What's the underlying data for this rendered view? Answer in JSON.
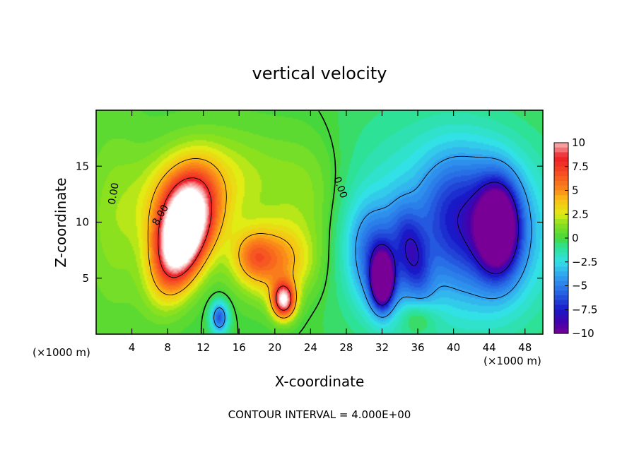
{
  "chart_data": {
    "type": "heatmap",
    "title": "vertical velocity",
    "xlabel": "X-coordinate",
    "ylabel": "Z-coordinate",
    "x_unit_left": "(×1000 m)",
    "x_unit_right": "(×1000 m)",
    "xlim": [
      0,
      50
    ],
    "ylim": [
      0,
      20
    ],
    "x_ticks": [
      4,
      8,
      12,
      16,
      20,
      24,
      28,
      32,
      36,
      40,
      44,
      48
    ],
    "y_ticks": [
      5,
      10,
      15
    ],
    "colorbar": {
      "range": [
        -10,
        10
      ],
      "ticks": [
        10,
        7.5,
        5,
        2.5,
        0,
        -2.5,
        -5,
        -7.5,
        -10
      ],
      "tick_labels": [
        "10",
        "7.5",
        "5",
        "2.5",
        "0",
        "−2.5",
        "−5",
        "−7.5",
        "−10"
      ]
    },
    "contour_interval_text": "CONTOUR INTERVAL = 4.000E+00",
    "contour_labels": [
      "0.00",
      "0.00",
      "8.00"
    ],
    "features": [
      {
        "x": 9.5,
        "z": 8.5,
        "w": 13,
        "sx": 1.8,
        "sz": 3.3,
        "rot": -20
      },
      {
        "x": 10.0,
        "z": 11.0,
        "w": 6,
        "sx": 3.0,
        "sz": 3.0,
        "rot": -20
      },
      {
        "x": 21.0,
        "z": 3.0,
        "w": 10,
        "sx": 0.9,
        "sz": 1.1,
        "rot": 0
      },
      {
        "x": 20.0,
        "z": 6.5,
        "w": 5,
        "sx": 2.8,
        "sz": 2.3,
        "rot": 0
      },
      {
        "x": 17.5,
        "z": 7.0,
        "w": 3,
        "sx": 1.5,
        "sz": 1.5,
        "rot": 0
      },
      {
        "x": 14.5,
        "z": 14.0,
        "w": 2,
        "sx": 5.0,
        "sz": 3.0,
        "rot": 0
      },
      {
        "x": 13.8,
        "z": 1.5,
        "w": -6,
        "sx": 0.7,
        "sz": 1.0,
        "rot": 0
      },
      {
        "x": 32.0,
        "z": 4.8,
        "w": -11,
        "sx": 0.8,
        "sz": 1.6,
        "rot": 0
      },
      {
        "x": 31.5,
        "z": 6.5,
        "w": -5,
        "sx": 2.2,
        "sz": 3.5,
        "rot": 15
      },
      {
        "x": 35.5,
        "z": 7.0,
        "w": -4,
        "sx": 1.2,
        "sz": 3.0,
        "rot": 15
      },
      {
        "x": 45.0,
        "z": 9.5,
        "w": -10,
        "sx": 1.6,
        "sz": 2.8,
        "rot": 0
      },
      {
        "x": 44.0,
        "z": 9.0,
        "w": -5,
        "sx": 5.0,
        "sz": 5.5,
        "rot": 0
      },
      {
        "x": 40.0,
        "z": 11.0,
        "w": -3,
        "sx": 3.0,
        "sz": 4.0,
        "rot": 0
      },
      {
        "x": 34.0,
        "z": 10.0,
        "w": -2,
        "sx": 6.0,
        "sz": 7.0,
        "rot": 0
      },
      {
        "x": 2.0,
        "z": 10.0,
        "w": 1.5,
        "sx": 2.5,
        "sz": 6.0,
        "rot": 0
      },
      {
        "x": 24.0,
        "z": 12.0,
        "w": 1.5,
        "sx": 3.0,
        "sz": 4.0,
        "rot": 0
      },
      {
        "x": 36.0,
        "z": 1.5,
        "w": 2,
        "sx": 1.5,
        "sz": 1.0,
        "rot": 0
      }
    ]
  }
}
